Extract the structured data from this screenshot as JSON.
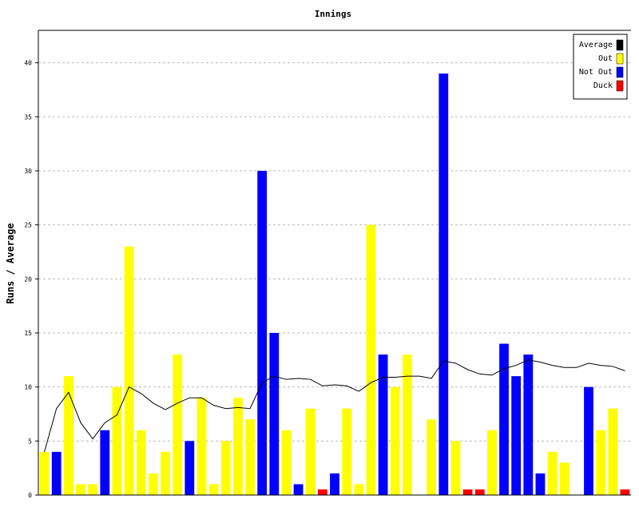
{
  "chart_data": {
    "type": "bar",
    "title": "Innings",
    "xlabel": "",
    "ylabel": "Runs / Average",
    "ylim": [
      0,
      43
    ],
    "yticks": [
      0,
      5,
      10,
      15,
      20,
      25,
      30,
      35,
      40
    ],
    "grid": "horizontal-dashed",
    "legend_position": "top-right",
    "legend": [
      {
        "label": "Average",
        "color": "#000000"
      },
      {
        "label": "Out",
        "color": "#ffff00"
      },
      {
        "label": "Not Out",
        "color": "#0000ff"
      },
      {
        "label": "Duck",
        "color": "#ff0000"
      }
    ],
    "innings": [
      {
        "runs": 4,
        "status": "Out"
      },
      {
        "runs": 4,
        "status": "Not Out"
      },
      {
        "runs": 11,
        "status": "Out"
      },
      {
        "runs": 1,
        "status": "Out"
      },
      {
        "runs": 1,
        "status": "Out"
      },
      {
        "runs": 6,
        "status": "Not Out"
      },
      {
        "runs": 10,
        "status": "Out"
      },
      {
        "runs": 23,
        "status": "Out"
      },
      {
        "runs": 6,
        "status": "Out"
      },
      {
        "runs": 2,
        "status": "Out"
      },
      {
        "runs": 4,
        "status": "Out"
      },
      {
        "runs": 13,
        "status": "Out"
      },
      {
        "runs": 5,
        "status": "Not Out"
      },
      {
        "runs": 9,
        "status": "Out"
      },
      {
        "runs": 1,
        "status": "Out"
      },
      {
        "runs": 5,
        "status": "Out"
      },
      {
        "runs": 9,
        "status": "Out"
      },
      {
        "runs": 7,
        "status": "Out"
      },
      {
        "runs": 30,
        "status": "Not Out"
      },
      {
        "runs": 15,
        "status": "Not Out"
      },
      {
        "runs": 6,
        "status": "Out"
      },
      {
        "runs": 1,
        "status": "Not Out"
      },
      {
        "runs": 8,
        "status": "Out"
      },
      {
        "runs": 0,
        "status": "Duck"
      },
      {
        "runs": 2,
        "status": "Not Out"
      },
      {
        "runs": 8,
        "status": "Out"
      },
      {
        "runs": 1,
        "status": "Out"
      },
      {
        "runs": 25,
        "status": "Out"
      },
      {
        "runs": 13,
        "status": "Not Out"
      },
      {
        "runs": 10,
        "status": "Out"
      },
      {
        "runs": 13,
        "status": "Out"
      },
      {
        "runs": 0,
        "status": "Out"
      },
      {
        "runs": 7,
        "status": "Out"
      },
      {
        "runs": 39,
        "status": "Not Out"
      },
      {
        "runs": 5,
        "status": "Out"
      },
      {
        "runs": 0,
        "status": "Duck"
      },
      {
        "runs": 0,
        "status": "Duck"
      },
      {
        "runs": 6,
        "status": "Out"
      },
      {
        "runs": 14,
        "status": "Not Out"
      },
      {
        "runs": 11,
        "status": "Not Out"
      },
      {
        "runs": 13,
        "status": "Not Out"
      },
      {
        "runs": 2,
        "status": "Not Out"
      },
      {
        "runs": 4,
        "status": "Out"
      },
      {
        "runs": 3,
        "status": "Out"
      },
      {
        "runs": 0,
        "status": "Out"
      },
      {
        "runs": 10,
        "status": "Not Out"
      },
      {
        "runs": 6,
        "status": "Out"
      },
      {
        "runs": 8,
        "status": "Out"
      },
      {
        "runs": 0,
        "status": "Duck"
      }
    ],
    "average": [
      4,
      8,
      9.5,
      6.7,
      5.2,
      6.7,
      7.4,
      10,
      9.4,
      8.5,
      7.9,
      8.5,
      9,
      9,
      8.3,
      8,
      8.1,
      8,
      10.4,
      11,
      10.7,
      10.8,
      10.7,
      10.1,
      10.2,
      10.1,
      9.6,
      10.4,
      10.9,
      10.9,
      11,
      11,
      10.8,
      12.4,
      12.2,
      11.6,
      11.2,
      11.1,
      11.7,
      12,
      12.5,
      12.3,
      12,
      11.8,
      11.8,
      12.2,
      12,
      11.9,
      11.5
    ]
  }
}
